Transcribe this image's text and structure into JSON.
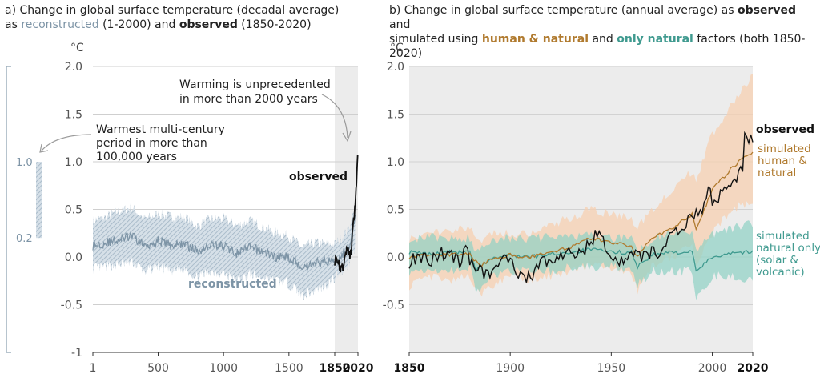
{
  "panel_a": {
    "title_line1": "a) Change in global surface temperature (decadal average)",
    "title_prefix": "as ",
    "title_rec": "reconstructed",
    "title_mid": " (1-2000) and ",
    "title_obs": "observed",
    "title_suffix": " (1850-2020)",
    "unit": "°C",
    "annotation_unprecedented": [
      "Warming is unprecedented",
      "in more than 2000 years"
    ],
    "annotation_warmest": [
      "Warmest multi-century",
      "period in more than",
      "100,000 years"
    ],
    "label_observed": "observed",
    "label_reconstructed": "reconstructed",
    "side_bar_top": "1.0",
    "side_bar_bottom": "0.2"
  },
  "panel_b": {
    "title_line1_a": "b) Change in global surface temperature (annual average) as ",
    "title_line1_obs": "observed",
    "title_line1_b": " and",
    "title_line2_a": "simulated using ",
    "title_line2_hn": "human & natural",
    "title_line2_b": " and ",
    "title_line2_nn": "only natural",
    "title_line2_c": " factors (both 1850-2020)",
    "unit": "°C",
    "label_observed": "observed",
    "label_human": [
      "simulated",
      "human &",
      "natural"
    ],
    "label_natural": [
      "simulated",
      "natural only",
      "(solar &",
      "volcanic)"
    ]
  },
  "colors": {
    "observed": "#111111",
    "reconstructed": "#7d94a6",
    "reconstructed_band": "#b9c8d4",
    "human_natural": "#b07a2e",
    "human_natural_band": "#f8cfae",
    "only_natural": "#3f9a8f",
    "only_natural_band": "#8fd1c4",
    "shade": "#ececec"
  },
  "chart_data": [
    {
      "type": "line",
      "ylim": [
        -1.0,
        2.0
      ],
      "xlim": [
        1,
        2020
      ],
      "yticks": [
        "-1",
        "-0.5",
        "0.0",
        "0.5",
        "1.0",
        "1.5",
        "2.0"
      ],
      "xticks": [
        "1",
        "500",
        "1000",
        "1500",
        "1850",
        "2020"
      ],
      "shaded_region": [
        1850,
        2020
      ],
      "series": [
        {
          "name": "reconstructed",
          "x": [
            1,
            100,
            200,
            300,
            400,
            500,
            600,
            700,
            800,
            900,
            1000,
            1100,
            1200,
            1300,
            1400,
            1500,
            1600,
            1700,
            1800,
            1850,
            1900,
            1950,
            2000
          ],
          "values": [
            0.12,
            0.15,
            0.18,
            0.22,
            0.12,
            0.17,
            0.12,
            0.14,
            0.06,
            0.13,
            0.12,
            0.04,
            0.1,
            0.06,
            0.0,
            0.0,
            -0.1,
            -0.06,
            -0.04,
            -0.03,
            0.02,
            0.1,
            0.4
          ],
          "upper": [
            0.38,
            0.42,
            0.48,
            0.52,
            0.4,
            0.45,
            0.42,
            0.42,
            0.32,
            0.4,
            0.4,
            0.33,
            0.38,
            0.32,
            0.25,
            0.22,
            0.1,
            0.15,
            0.13,
            0.13,
            0.2,
            0.3,
            0.5
          ],
          "lower": [
            -0.12,
            -0.1,
            -0.08,
            -0.05,
            -0.15,
            -0.1,
            -0.15,
            -0.12,
            -0.22,
            -0.15,
            -0.17,
            -0.25,
            -0.18,
            -0.22,
            -0.25,
            -0.28,
            -0.4,
            -0.35,
            -0.28,
            -0.22,
            -0.15,
            -0.08,
            0.1
          ]
        },
        {
          "name": "observed",
          "x": [
            1850,
            1860,
            1870,
            1880,
            1890,
            1900,
            1910,
            1920,
            1930,
            1940,
            1950,
            1960,
            1970,
            1980,
            1990,
            2000,
            2010,
            2020
          ],
          "values": [
            -0.05,
            -0.02,
            -0.1,
            -0.05,
            -0.15,
            -0.08,
            -0.12,
            -0.02,
            0.02,
            0.1,
            0.05,
            0.02,
            0.05,
            0.25,
            0.4,
            0.55,
            0.8,
            1.1
          ]
        }
      ]
    },
    {
      "type": "line",
      "ylim": [
        -1.0,
        2.0
      ],
      "xlim": [
        1850,
        2020
      ],
      "yticks": [
        "-0.5",
        "0.0",
        "0.5",
        "1.0",
        "1.5",
        "2.0"
      ],
      "xticks": [
        "1850",
        "1900",
        "1950",
        "2000",
        "2020"
      ],
      "series": [
        {
          "name": "observed",
          "x": [
            1850,
            1855,
            1860,
            1865,
            1870,
            1875,
            1878,
            1880,
            1885,
            1890,
            1895,
            1900,
            1905,
            1910,
            1915,
            1920,
            1925,
            1930,
            1935,
            1940,
            1944,
            1945,
            1950,
            1955,
            1960,
            1965,
            1970,
            1975,
            1980,
            1985,
            1990,
            1995,
            1998,
            2000,
            2005,
            2010,
            2015,
            2016,
            2020
          ],
          "values": [
            -0.05,
            0.0,
            -0.05,
            0.05,
            0.02,
            -0.05,
            0.12,
            -0.05,
            -0.15,
            -0.2,
            -0.05,
            0.0,
            -0.2,
            -0.22,
            -0.05,
            -0.05,
            0.0,
            0.05,
            0.05,
            0.15,
            0.28,
            0.18,
            0.0,
            -0.05,
            0.1,
            -0.02,
            0.05,
            0.0,
            0.3,
            0.25,
            0.45,
            0.45,
            0.8,
            0.5,
            0.7,
            0.8,
            0.95,
            1.25,
            1.25
          ]
        },
        {
          "name": "human & natural",
          "x": [
            1850,
            1860,
            1870,
            1880,
            1885,
            1890,
            1900,
            1910,
            1920,
            1930,
            1940,
            1950,
            1960,
            1963,
            1970,
            1980,
            1990,
            1992,
            2000,
            2010,
            2020
          ],
          "values": [
            0.0,
            0.02,
            0.03,
            0.03,
            -0.1,
            -0.02,
            0.02,
            0.0,
            0.05,
            0.1,
            0.2,
            0.15,
            0.12,
            0.0,
            0.2,
            0.3,
            0.45,
            0.3,
            0.7,
            0.95,
            1.1
          ],
          "upper": [
            0.2,
            0.25,
            0.3,
            0.3,
            0.15,
            0.25,
            0.25,
            0.25,
            0.35,
            0.4,
            0.5,
            0.45,
            0.4,
            0.3,
            0.5,
            0.7,
            0.9,
            0.8,
            1.3,
            1.6,
            1.9
          ],
          "lower": [
            -0.3,
            -0.2,
            -0.25,
            -0.2,
            -0.4,
            -0.3,
            -0.2,
            -0.25,
            -0.2,
            -0.15,
            -0.1,
            -0.1,
            -0.2,
            -0.35,
            -0.1,
            0.0,
            0.1,
            -0.05,
            0.25,
            0.5,
            0.6
          ]
        },
        {
          "name": "only natural",
          "x": [
            1850,
            1860,
            1870,
            1880,
            1883,
            1890,
            1900,
            1910,
            1920,
            1930,
            1940,
            1950,
            1960,
            1963,
            1970,
            1980,
            1990,
            1992,
            2000,
            2010,
            2020
          ],
          "values": [
            0.05,
            0.03,
            0.05,
            0.05,
            -0.15,
            -0.02,
            0.02,
            0.0,
            0.03,
            0.05,
            0.08,
            0.05,
            0.05,
            -0.1,
            0.02,
            0.05,
            0.05,
            -0.15,
            0.0,
            0.05,
            0.05
          ],
          "upper": [
            0.2,
            0.2,
            0.2,
            0.2,
            0.05,
            0.18,
            0.2,
            0.2,
            0.2,
            0.22,
            0.22,
            0.2,
            0.22,
            0.05,
            0.2,
            0.25,
            0.28,
            0.05,
            0.25,
            0.3,
            0.35
          ],
          "lower": [
            -0.15,
            -0.15,
            -0.15,
            -0.1,
            -0.4,
            -0.2,
            -0.15,
            -0.15,
            -0.15,
            -0.1,
            -0.1,
            -0.1,
            -0.15,
            -0.3,
            -0.15,
            -0.15,
            -0.15,
            -0.45,
            -0.2,
            -0.2,
            -0.25
          ]
        }
      ]
    }
  ]
}
